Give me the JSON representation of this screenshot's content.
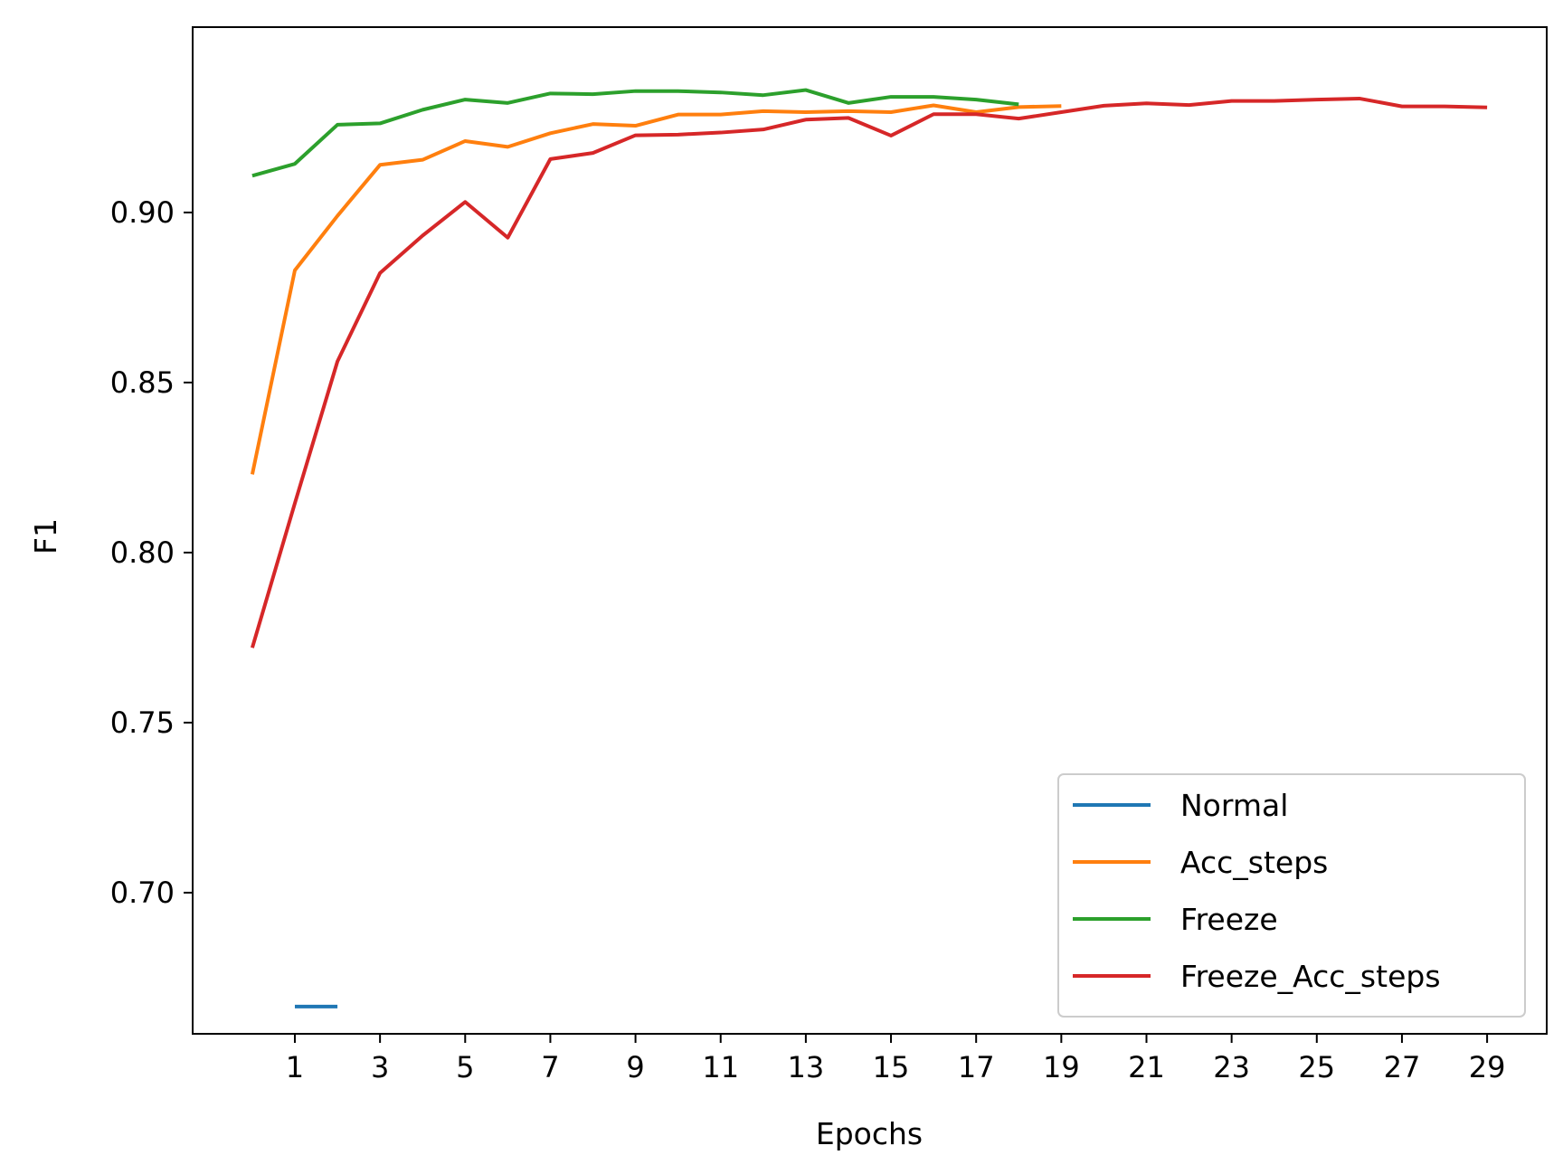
{
  "chart_data": {
    "type": "line",
    "title": "",
    "xlabel": "Epochs",
    "ylabel": "F1",
    "xlim": [
      -1.4,
      30.4
    ],
    "ylim": [
      0.6585,
      0.9545
    ],
    "xticks": [
      1,
      3,
      5,
      7,
      9,
      11,
      13,
      15,
      17,
      19,
      21,
      23,
      25,
      27,
      29
    ],
    "xtick_labels": [
      "1",
      "3",
      "5",
      "7",
      "9",
      "11",
      "13",
      "15",
      "17",
      "19",
      "21",
      "23",
      "25",
      "27",
      "29"
    ],
    "yticks": [
      0.7,
      0.75,
      0.8,
      0.85,
      0.9
    ],
    "ytick_labels": [
      "0.70",
      "0.75",
      "0.80",
      "0.85",
      "0.90"
    ],
    "grid": false,
    "legend_position": "lower-right",
    "series": [
      {
        "name": "Normal",
        "color": "#1f77b4",
        "x": [
          1,
          2
        ],
        "y": [
          0.6665,
          0.6665
        ]
      },
      {
        "name": "Acc_steps",
        "color": "#ff7f0e",
        "x": [
          0,
          1,
          2,
          3,
          4,
          5,
          6,
          7,
          8,
          9,
          10,
          11,
          12,
          13,
          14,
          15,
          16,
          17,
          18,
          19
        ],
        "y": [
          0.823,
          0.883,
          0.899,
          0.914,
          0.9155,
          0.921,
          0.9193,
          0.9233,
          0.926,
          0.9255,
          0.9288,
          0.9288,
          0.9298,
          0.9295,
          0.9298,
          0.9295,
          0.9315,
          0.9295,
          0.931,
          0.9313
        ]
      },
      {
        "name": "Freeze",
        "color": "#2ca02c",
        "x": [
          0,
          1,
          2,
          3,
          4,
          5,
          6,
          7,
          8,
          9,
          10,
          11,
          12,
          13,
          14,
          15,
          16,
          17,
          18
        ],
        "y": [
          0.9108,
          0.9143,
          0.9258,
          0.9262,
          0.9302,
          0.9332,
          0.9322,
          0.935,
          0.9348,
          0.9357,
          0.9357,
          0.9353,
          0.9345,
          0.936,
          0.9322,
          0.934,
          0.934,
          0.9332,
          0.9318
        ]
      },
      {
        "name": "Freeze_Acc_steps",
        "color": "#d62728",
        "x": [
          0,
          1,
          2,
          3,
          4,
          5,
          6,
          7,
          8,
          9,
          10,
          11,
          12,
          13,
          14,
          15,
          16,
          17,
          18,
          19,
          20,
          21,
          22,
          23,
          24,
          25,
          26,
          27,
          28,
          29
        ],
        "y": [
          0.772,
          0.8145,
          0.8562,
          0.8822,
          0.8932,
          0.9031,
          0.8926,
          0.9157,
          0.9175,
          0.9227,
          0.9229,
          0.9235,
          0.9244,
          0.9273,
          0.9278,
          0.9226,
          0.9289,
          0.9289,
          0.9276,
          0.9295,
          0.9314,
          0.9321,
          0.9316,
          0.9328,
          0.9328,
          0.9332,
          0.9335,
          0.9312,
          0.9312,
          0.9309
        ]
      }
    ]
  }
}
